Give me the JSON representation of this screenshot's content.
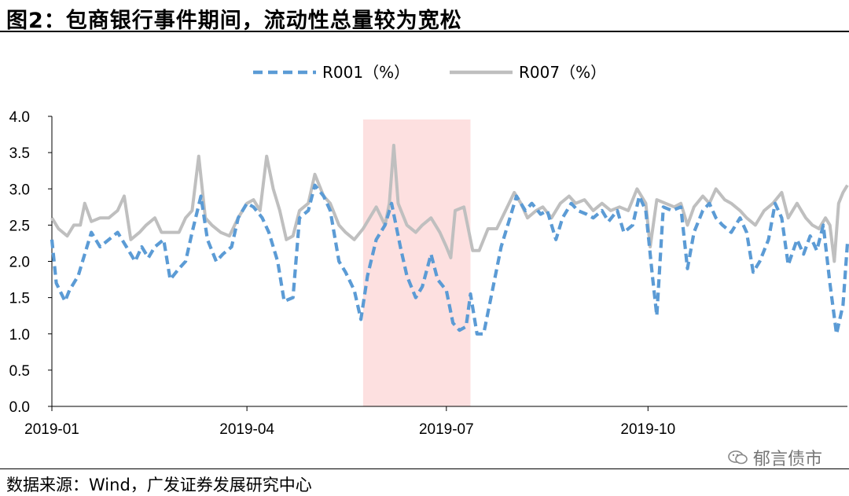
{
  "header": {
    "title": "图2：包商银行事件期间，流动性总量较为宽松"
  },
  "footer": {
    "source": "数据来源：Wind，广发证券发展研究中心",
    "watermark": "郁言债市"
  },
  "chart_data": {
    "type": "line",
    "ylim": [
      0,
      4
    ],
    "yticks": [
      "0.0",
      "0.5",
      "1.0",
      "1.5",
      "2.0",
      "2.5",
      "3.0",
      "3.5",
      "4.0"
    ],
    "xlim": [
      "2019-01-02",
      "2019-12-31"
    ],
    "xticks": [
      {
        "label": "2019-01",
        "date": "2019-01-01"
      },
      {
        "label": "2019-04",
        "date": "2019-04-01"
      },
      {
        "label": "2019-07",
        "date": "2019-07-01"
      },
      {
        "label": "2019-10",
        "date": "2019-10-01"
      }
    ],
    "highlight": {
      "start": "2019-05-24",
      "end": "2019-07-12",
      "color": "#fde0e0"
    },
    "grid": false,
    "legend": "top",
    "series": [
      {
        "name": "R001（%）",
        "color": "#5b9bd5",
        "dash": true,
        "points": [
          [
            "2019-01-02",
            2.3
          ],
          [
            "2019-01-04",
            1.7
          ],
          [
            "2019-01-08",
            1.45
          ],
          [
            "2019-01-10",
            1.6
          ],
          [
            "2019-01-14",
            1.8
          ],
          [
            "2019-01-17",
            2.1
          ],
          [
            "2019-01-20",
            2.4
          ],
          [
            "2019-01-24",
            2.2
          ],
          [
            "2019-01-28",
            2.3
          ],
          [
            "2019-02-01",
            2.4
          ],
          [
            "2019-02-05",
            2.2
          ],
          [
            "2019-02-09",
            2.0
          ],
          [
            "2019-02-12",
            2.2
          ],
          [
            "2019-02-15",
            2.05
          ],
          [
            "2019-02-18",
            2.2
          ],
          [
            "2019-02-22",
            2.3
          ],
          [
            "2019-02-25",
            1.75
          ],
          [
            "2019-03-01",
            1.9
          ],
          [
            "2019-03-04",
            2.0
          ],
          [
            "2019-03-07",
            2.4
          ],
          [
            "2019-03-11",
            2.9
          ],
          [
            "2019-03-14",
            2.3
          ],
          [
            "2019-03-18",
            2.0
          ],
          [
            "2019-03-21",
            2.1
          ],
          [
            "2019-03-25",
            2.2
          ],
          [
            "2019-03-28",
            2.6
          ],
          [
            "2019-04-01",
            2.8
          ],
          [
            "2019-04-04",
            2.75
          ],
          [
            "2019-04-08",
            2.6
          ],
          [
            "2019-04-11",
            2.4
          ],
          [
            "2019-04-15",
            2.0
          ],
          [
            "2019-04-18",
            1.45
          ],
          [
            "2019-04-22",
            1.5
          ],
          [
            "2019-04-25",
            2.6
          ],
          [
            "2019-04-29",
            2.7
          ],
          [
            "2019-05-02",
            3.05
          ],
          [
            "2019-05-06",
            2.9
          ],
          [
            "2019-05-09",
            2.7
          ],
          [
            "2019-05-13",
            2.0
          ],
          [
            "2019-05-16",
            1.85
          ],
          [
            "2019-05-20",
            1.6
          ],
          [
            "2019-05-23",
            1.2
          ],
          [
            "2019-05-26",
            1.8
          ],
          [
            "2019-05-30",
            2.3
          ],
          [
            "2019-06-03",
            2.5
          ],
          [
            "2019-06-06",
            2.8
          ],
          [
            "2019-06-10",
            2.2
          ],
          [
            "2019-06-13",
            1.8
          ],
          [
            "2019-06-17",
            1.5
          ],
          [
            "2019-06-20",
            1.65
          ],
          [
            "2019-06-24",
            2.1
          ],
          [
            "2019-06-27",
            1.75
          ],
          [
            "2019-07-01",
            1.6
          ],
          [
            "2019-07-04",
            1.15
          ],
          [
            "2019-07-07",
            1.05
          ],
          [
            "2019-07-10",
            1.1
          ],
          [
            "2019-07-12",
            1.55
          ],
          [
            "2019-07-15",
            1.0
          ],
          [
            "2019-07-18",
            1.0
          ],
          [
            "2019-07-22",
            1.6
          ],
          [
            "2019-07-26",
            2.2
          ],
          [
            "2019-07-30",
            2.6
          ],
          [
            "2019-08-02",
            2.9
          ],
          [
            "2019-08-06",
            2.7
          ],
          [
            "2019-08-09",
            2.8
          ],
          [
            "2019-08-13",
            2.65
          ],
          [
            "2019-08-16",
            2.7
          ],
          [
            "2019-08-20",
            2.3
          ],
          [
            "2019-08-23",
            2.6
          ],
          [
            "2019-08-27",
            2.8
          ],
          [
            "2019-08-30",
            2.7
          ],
          [
            "2019-09-03",
            2.65
          ],
          [
            "2019-09-06",
            2.6
          ],
          [
            "2019-09-10",
            2.7
          ],
          [
            "2019-09-13",
            2.55
          ],
          [
            "2019-09-17",
            2.7
          ],
          [
            "2019-09-20",
            2.4
          ],
          [
            "2019-09-24",
            2.5
          ],
          [
            "2019-09-27",
            2.9
          ],
          [
            "2019-09-30",
            2.7
          ],
          [
            "2019-10-03",
            1.8
          ],
          [
            "2019-10-05",
            1.25
          ],
          [
            "2019-10-08",
            2.75
          ],
          [
            "2019-10-12",
            2.7
          ],
          [
            "2019-10-16",
            2.75
          ],
          [
            "2019-10-19",
            1.9
          ],
          [
            "2019-10-22",
            2.4
          ],
          [
            "2019-10-26",
            2.7
          ],
          [
            "2019-10-29",
            2.8
          ],
          [
            "2019-11-01",
            2.6
          ],
          [
            "2019-11-04",
            2.5
          ],
          [
            "2019-11-08",
            2.4
          ],
          [
            "2019-11-12",
            2.6
          ],
          [
            "2019-11-15",
            2.4
          ],
          [
            "2019-11-18",
            1.85
          ],
          [
            "2019-11-21",
            2.0
          ],
          [
            "2019-11-25",
            2.3
          ],
          [
            "2019-11-28",
            2.8
          ],
          [
            "2019-12-01",
            2.6
          ],
          [
            "2019-12-04",
            1.95
          ],
          [
            "2019-12-08",
            2.3
          ],
          [
            "2019-12-11",
            2.1
          ],
          [
            "2019-12-14",
            2.35
          ],
          [
            "2019-12-17",
            2.15
          ],
          [
            "2019-12-20",
            2.5
          ],
          [
            "2019-12-23",
            1.7
          ],
          [
            "2019-12-26",
            1.0
          ],
          [
            "2019-12-29",
            1.4
          ],
          [
            "2019-12-31",
            2.25
          ]
        ]
      },
      {
        "name": "R007（%）",
        "color": "#bfbfbf",
        "dash": false,
        "points": [
          [
            "2019-01-02",
            2.6
          ],
          [
            "2019-01-05",
            2.45
          ],
          [
            "2019-01-09",
            2.35
          ],
          [
            "2019-01-12",
            2.5
          ],
          [
            "2019-01-15",
            2.5
          ],
          [
            "2019-01-17",
            2.8
          ],
          [
            "2019-01-20",
            2.55
          ],
          [
            "2019-01-24",
            2.6
          ],
          [
            "2019-01-28",
            2.6
          ],
          [
            "2019-02-01",
            2.7
          ],
          [
            "2019-02-04",
            2.9
          ],
          [
            "2019-02-07",
            2.3
          ],
          [
            "2019-02-11",
            2.4
          ],
          [
            "2019-02-14",
            2.5
          ],
          [
            "2019-02-18",
            2.6
          ],
          [
            "2019-02-21",
            2.4
          ],
          [
            "2019-02-25",
            2.4
          ],
          [
            "2019-03-01",
            2.4
          ],
          [
            "2019-03-04",
            2.6
          ],
          [
            "2019-03-07",
            2.7
          ],
          [
            "2019-03-10",
            3.45
          ],
          [
            "2019-03-13",
            2.6
          ],
          [
            "2019-03-16",
            2.5
          ],
          [
            "2019-03-20",
            2.4
          ],
          [
            "2019-03-24",
            2.35
          ],
          [
            "2019-03-28",
            2.6
          ],
          [
            "2019-04-01",
            2.8
          ],
          [
            "2019-04-04",
            2.85
          ],
          [
            "2019-04-07",
            2.7
          ],
          [
            "2019-04-10",
            3.45
          ],
          [
            "2019-04-13",
            3.0
          ],
          [
            "2019-04-16",
            2.7
          ],
          [
            "2019-04-19",
            2.3
          ],
          [
            "2019-04-22",
            2.35
          ],
          [
            "2019-04-25",
            2.7
          ],
          [
            "2019-04-29",
            2.8
          ],
          [
            "2019-05-02",
            3.2
          ],
          [
            "2019-05-06",
            2.9
          ],
          [
            "2019-05-09",
            2.8
          ],
          [
            "2019-05-13",
            2.5
          ],
          [
            "2019-05-16",
            2.4
          ],
          [
            "2019-05-20",
            2.3
          ],
          [
            "2019-05-24",
            2.45
          ],
          [
            "2019-05-27",
            2.6
          ],
          [
            "2019-05-30",
            2.75
          ],
          [
            "2019-06-03",
            2.5
          ],
          [
            "2019-06-05",
            2.8
          ],
          [
            "2019-06-07",
            3.6
          ],
          [
            "2019-06-09",
            2.8
          ],
          [
            "2019-06-13",
            2.5
          ],
          [
            "2019-06-17",
            2.4
          ],
          [
            "2019-06-20",
            2.5
          ],
          [
            "2019-06-24",
            2.6
          ],
          [
            "2019-06-28",
            2.4
          ],
          [
            "2019-07-01",
            2.2
          ],
          [
            "2019-07-03",
            2.05
          ],
          [
            "2019-07-05",
            2.7
          ],
          [
            "2019-07-09",
            2.75
          ],
          [
            "2019-07-11",
            2.45
          ],
          [
            "2019-07-13",
            2.15
          ],
          [
            "2019-07-16",
            2.15
          ],
          [
            "2019-07-20",
            2.45
          ],
          [
            "2019-07-24",
            2.45
          ],
          [
            "2019-07-28",
            2.7
          ],
          [
            "2019-08-01",
            2.95
          ],
          [
            "2019-08-04",
            2.8
          ],
          [
            "2019-08-07",
            2.6
          ],
          [
            "2019-08-11",
            2.7
          ],
          [
            "2019-08-14",
            2.75
          ],
          [
            "2019-08-18",
            2.6
          ],
          [
            "2019-08-22",
            2.8
          ],
          [
            "2019-08-26",
            2.9
          ],
          [
            "2019-08-29",
            2.8
          ],
          [
            "2019-09-02",
            2.85
          ],
          [
            "2019-09-06",
            2.7
          ],
          [
            "2019-09-10",
            2.8
          ],
          [
            "2019-09-14",
            2.7
          ],
          [
            "2019-09-18",
            2.75
          ],
          [
            "2019-09-22",
            2.7
          ],
          [
            "2019-09-26",
            3.0
          ],
          [
            "2019-09-30",
            2.8
          ],
          [
            "2019-10-02",
            2.2
          ],
          [
            "2019-10-05",
            2.85
          ],
          [
            "2019-10-09",
            2.8
          ],
          [
            "2019-10-13",
            2.75
          ],
          [
            "2019-10-16",
            2.8
          ],
          [
            "2019-10-19",
            2.5
          ],
          [
            "2019-10-22",
            2.75
          ],
          [
            "2019-10-26",
            2.9
          ],
          [
            "2019-10-29",
            2.8
          ],
          [
            "2019-11-01",
            3.0
          ],
          [
            "2019-11-05",
            2.85
          ],
          [
            "2019-11-08",
            2.8
          ],
          [
            "2019-11-12",
            2.7
          ],
          [
            "2019-11-15",
            2.6
          ],
          [
            "2019-11-19",
            2.5
          ],
          [
            "2019-11-23",
            2.7
          ],
          [
            "2019-11-27",
            2.8
          ],
          [
            "2019-12-01",
            2.95
          ],
          [
            "2019-12-04",
            2.6
          ],
          [
            "2019-12-08",
            2.8
          ],
          [
            "2019-12-12",
            2.6
          ],
          [
            "2019-12-15",
            2.5
          ],
          [
            "2019-12-18",
            2.45
          ],
          [
            "2019-12-21",
            2.6
          ],
          [
            "2019-12-23",
            2.5
          ],
          [
            "2019-12-25",
            2.0
          ],
          [
            "2019-12-27",
            2.8
          ],
          [
            "2019-12-29",
            2.95
          ],
          [
            "2019-12-31",
            3.05
          ]
        ]
      }
    ]
  }
}
